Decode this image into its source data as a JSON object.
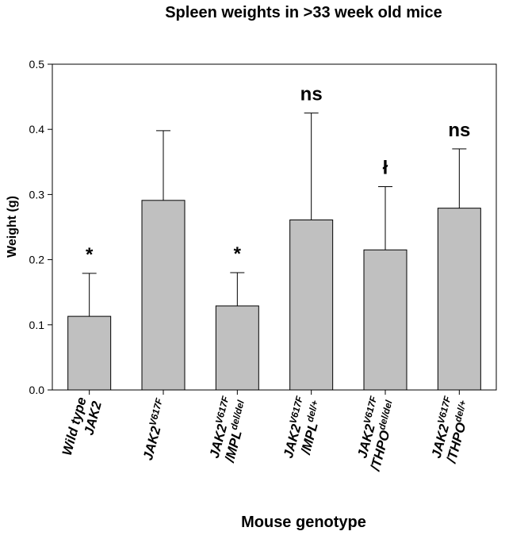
{
  "chart_data": {
    "type": "bar",
    "title": "Spleen weights in >33 week old mice",
    "xlabel": "Mouse genotype",
    "ylabel": "Weight (g)",
    "ylim": [
      0,
      0.5
    ],
    "yticks": [
      "0.0",
      "0.1",
      "0.2",
      "0.3",
      "0.4",
      "0.5"
    ],
    "grid": false,
    "bar_color": "#c0c0c0",
    "categories": [
      {
        "lines": [
          [
            {
              "t": "Wild type"
            }
          ],
          [
            {
              "t": "JAK2"
            }
          ]
        ]
      },
      {
        "lines": [
          [
            {
              "t": "JAK2"
            },
            {
              "t": "V617F",
              "sup": true
            }
          ]
        ]
      },
      {
        "lines": [
          [
            {
              "t": "JAK2"
            },
            {
              "t": "V617F",
              "sup": true
            }
          ],
          [
            {
              "t": "/MPL"
            },
            {
              "t": "del/del",
              "sup": true
            }
          ]
        ]
      },
      {
        "lines": [
          [
            {
              "t": "JAK2"
            },
            {
              "t": "V617F",
              "sup": true
            }
          ],
          [
            {
              "t": "/MPL"
            },
            {
              "t": "del/+",
              "sup": true
            }
          ]
        ]
      },
      {
        "lines": [
          [
            {
              "t": "JAK2"
            },
            {
              "t": "V617F",
              "sup": true
            }
          ],
          [
            {
              "t": "/THPO"
            },
            {
              "t": "del/del",
              "sup": true
            }
          ]
        ]
      },
      {
        "lines": [
          [
            {
              "t": "JAK2"
            },
            {
              "t": "V617F",
              "sup": true
            }
          ],
          [
            {
              "t": "/THPO"
            },
            {
              "t": "del/+",
              "sup": true
            }
          ]
        ]
      }
    ],
    "values": [
      0.113,
      0.291,
      0.129,
      0.261,
      0.215,
      0.279
    ],
    "error_upper": [
      0.179,
      0.398,
      0.18,
      0.425,
      0.312,
      0.37
    ],
    "annotations": [
      "*",
      "",
      "*",
      "ns",
      "ł",
      "ns"
    ]
  }
}
